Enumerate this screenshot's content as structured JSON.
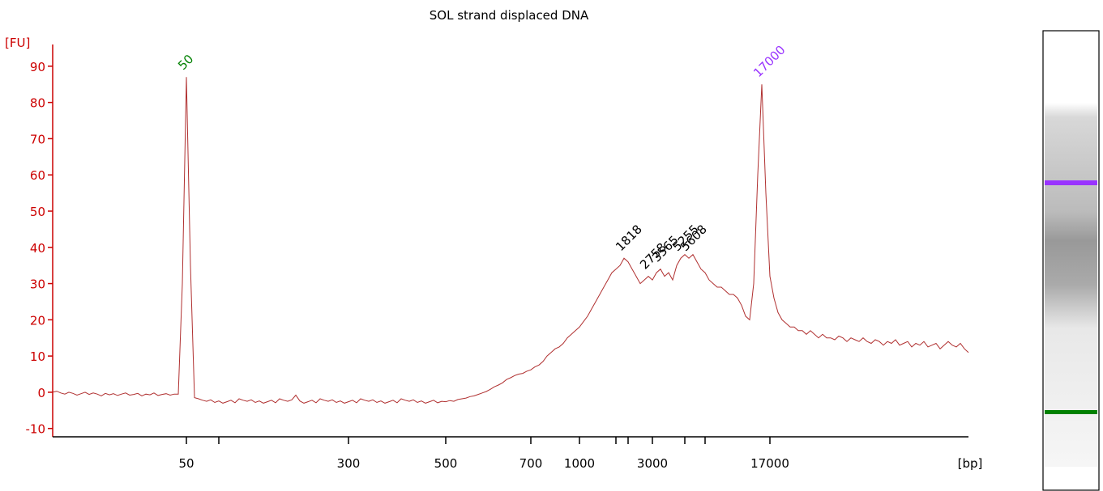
{
  "chart_data": {
    "type": "line",
    "title": "SOL strand displaced DNA",
    "y_label": "[FU]",
    "x_label": "[bp]",
    "color": "#b03030",
    "axis_color": "#cc0000",
    "values": [
      0,
      0.3,
      -0.2,
      -0.5,
      0,
      -0.3,
      -0.8,
      -0.4,
      0,
      -0.6,
      -0.2,
      -0.5,
      -1,
      -0.3,
      -0.7,
      -0.4,
      -0.9,
      -0.5,
      -0.2,
      -0.8,
      -0.6,
      -0.3,
      -1,
      -0.5,
      -0.7,
      -0.2,
      -0.9,
      -0.6,
      -0.4,
      -0.8,
      -0.5,
      -0.5,
      30,
      87,
      35,
      -1.5,
      -1.8,
      -2.2,
      -2.5,
      -2.1,
      -2.8,
      -2.4,
      -3,
      -2.6,
      -2.2,
      -2.9,
      -1.8,
      -2.2,
      -2.5,
      -2.1,
      -2.8,
      -2.4,
      -3,
      -2.6,
      -2.2,
      -2.9,
      -1.8,
      -2.2,
      -2.5,
      -2.1,
      -0.8,
      -2.4,
      -3,
      -2.6,
      -2.2,
      -2.9,
      -1.8,
      -2.2,
      -2.5,
      -2.1,
      -2.8,
      -2.4,
      -3,
      -2.6,
      -2.2,
      -2.9,
      -1.8,
      -2.2,
      -2.5,
      -2.1,
      -2.8,
      -2.4,
      -3,
      -2.6,
      -2.2,
      -2.9,
      -1.8,
      -2.2,
      -2.5,
      -2.1,
      -2.8,
      -2.4,
      -3,
      -2.6,
      -2.2,
      -2.9,
      -2.5,
      -2.6,
      -2.3,
      -2.5,
      -2,
      -1.8,
      -1.6,
      -1.2,
      -1,
      -0.6,
      -0.2,
      0.2,
      0.8,
      1.5,
      2,
      2.6,
      3.5,
      4,
      4.6,
      5,
      5.2,
      5.8,
      6.2,
      7,
      7.5,
      8.5,
      10,
      11,
      12,
      12.5,
      13.5,
      15,
      16,
      17,
      18,
      19.5,
      21,
      23,
      25,
      27,
      29,
      31,
      33,
      34,
      35,
      37,
      36,
      34,
      32,
      30,
      31,
      32,
      31,
      33,
      34,
      32,
      33,
      31,
      35,
      37,
      38,
      37,
      38,
      36,
      34,
      33,
      31,
      30,
      29,
      29,
      28,
      27,
      27,
      26,
      24,
      21,
      20,
      30,
      60,
      85,
      55,
      32,
      26,
      22,
      20,
      19,
      18,
      18,
      17,
      17,
      16,
      17,
      16,
      15,
      16,
      15,
      15,
      14.5,
      15.5,
      15,
      14,
      15,
      14.5,
      14,
      15,
      14,
      13.5,
      14.5,
      14,
      13,
      14,
      13.5,
      14.5,
      13,
      13.5,
      14,
      12.5,
      13.5,
      13,
      14,
      12.5,
      13,
      13.5,
      12,
      13,
      14,
      13,
      12.5,
      13.5,
      12,
      11
    ],
    "xlim": [
      0,
      226
    ],
    "ylim": [
      -12.3,
      96
    ],
    "yticks": [
      -10,
      0,
      10,
      20,
      30,
      40,
      50,
      60,
      70,
      80,
      90
    ],
    "xticks": [
      {
        "value": 33,
        "label": "50"
      },
      {
        "value": 73,
        "label": "300"
      },
      {
        "value": 97,
        "label": "500"
      },
      {
        "value": 118,
        "label": "700"
      },
      {
        "value": 130,
        "label": "1000"
      },
      {
        "value": 148,
        "label": "3000"
      },
      {
        "value": 177,
        "label": "17000"
      }
    ],
    "x_minor_ticks": [
      41,
      139,
      142,
      156,
      161
    ],
    "peak_labels": [
      {
        "text": "50",
        "x": 33,
        "color": "#008000"
      },
      {
        "text": "1818",
        "x": 141,
        "color": "#000000"
      },
      {
        "text": "2758",
        "x": 147,
        "color": "#000000"
      },
      {
        "text": "3565",
        "x": 150,
        "color": "#000000"
      },
      {
        "text": "5255",
        "x": 155,
        "color": "#000000"
      },
      {
        "text": "5608",
        "x": 157,
        "color": "#000000"
      },
      {
        "text": "17000",
        "x": 175,
        "color": "#9933ff"
      }
    ]
  }
}
